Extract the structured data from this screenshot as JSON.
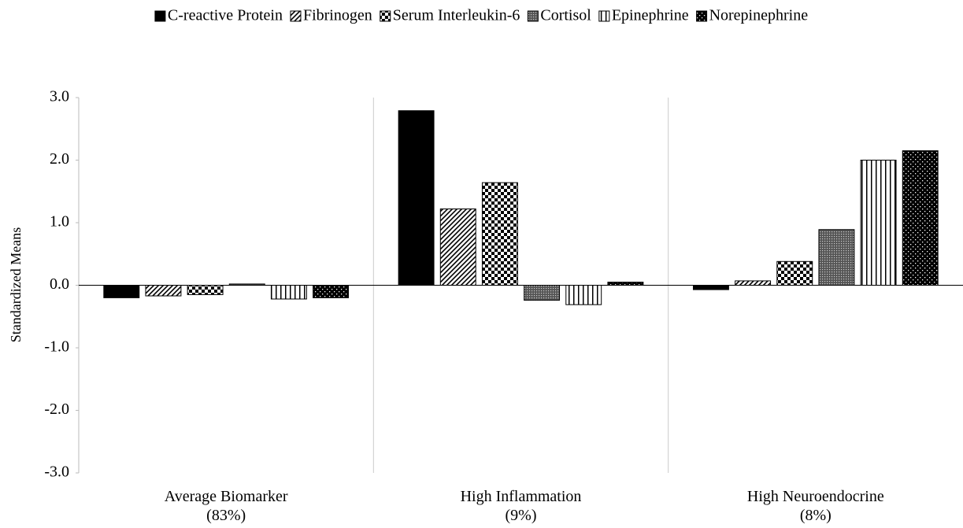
{
  "chart_data": {
    "type": "bar",
    "y_label": "Standardized Means",
    "categories": [
      "Average Biomarker\n(83%)",
      "High Inflammation\n(9%)",
      "High Neuroendocrine\n(8%)"
    ],
    "series": [
      {
        "name": "C-reactive Protein",
        "color": "#000000",
        "pattern": "solid",
        "values": [
          -0.2,
          2.79,
          -0.07
        ]
      },
      {
        "name": "Fibrinogen",
        "color": "#000000",
        "pattern": "diagonal",
        "values": [
          -0.17,
          1.22,
          0.07
        ]
      },
      {
        "name": "Serum Interleukin-6",
        "color": "#000000",
        "pattern": "checker",
        "values": [
          -0.15,
          1.64,
          0.38
        ]
      },
      {
        "name": "Cortisol",
        "color": "#555555",
        "pattern": "dots",
        "values": [
          0.02,
          -0.24,
          0.89
        ]
      },
      {
        "name": "Epinephrine",
        "color": "#000000",
        "pattern": "vertical",
        "values": [
          -0.22,
          -0.31,
          2.0
        ]
      },
      {
        "name": "Norepinephrine",
        "color": "#000000",
        "pattern": "dark-dots",
        "values": [
          -0.2,
          0.05,
          2.15
        ]
      }
    ],
    "ylim": [
      -3,
      3
    ],
    "yticks": [
      {
        "value": -3,
        "label": "-3.0"
      },
      {
        "value": -2,
        "label": "-2.0"
      },
      {
        "value": -1,
        "label": "-1.0"
      },
      {
        "value": 0,
        "label": "0.0"
      },
      {
        "value": 1,
        "label": "1.0"
      },
      {
        "value": 2,
        "label": "2.0"
      },
      {
        "value": 3,
        "label": "3.0"
      }
    ],
    "legend": "top"
  }
}
